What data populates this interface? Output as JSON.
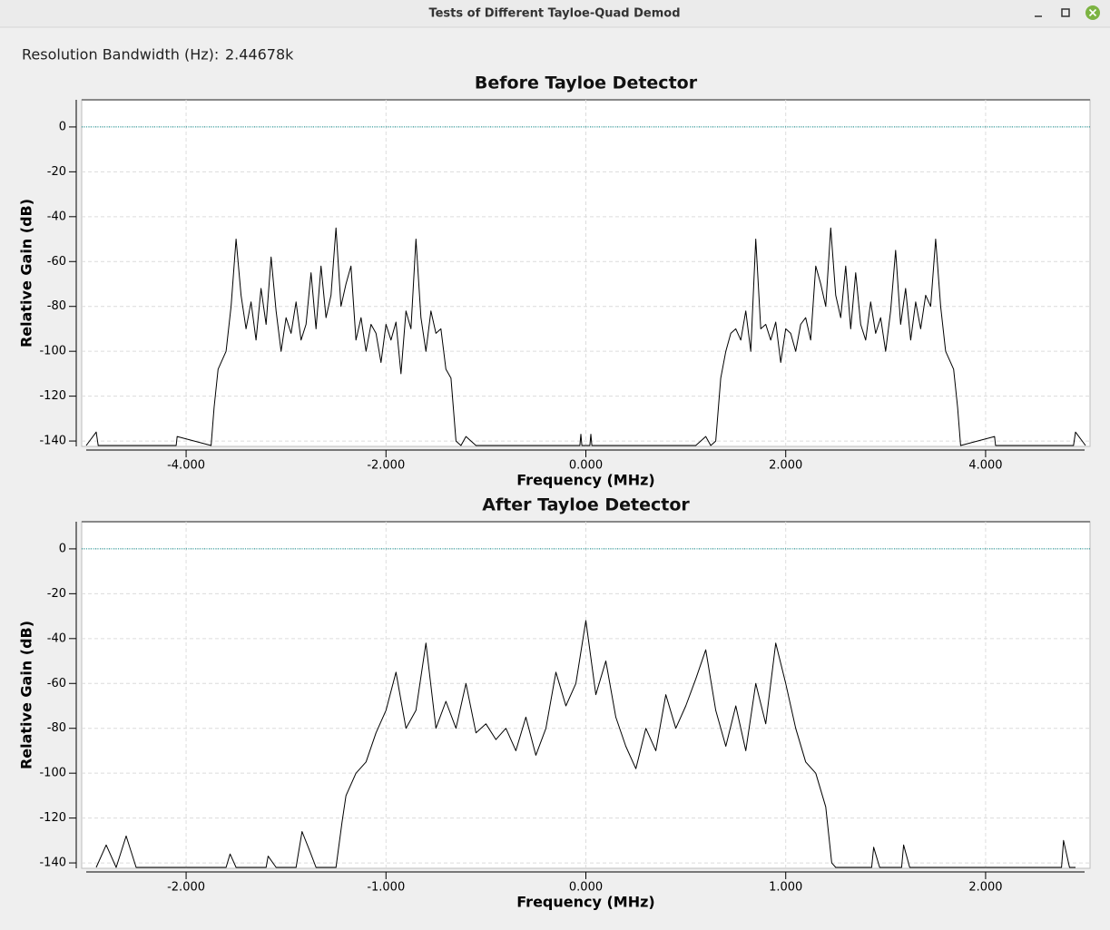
{
  "window": {
    "title": "Tests of Different Tayloe-Quad Demod"
  },
  "controls": {
    "resolution_label": "Resolution Bandwidth (Hz):",
    "resolution_value": "2.44678k"
  },
  "chart_data": [
    {
      "type": "line",
      "title": "Before Tayloe Detector",
      "x_label": "Frequency (MHz)",
      "y_label": "Relative Gain (dB)",
      "xlim": [
        -5.045,
        5.045
      ],
      "ylim": [
        -142.4,
        12.1
      ],
      "xticks": [
        {
          "value": -4,
          "label": "-4.000"
        },
        {
          "value": -2,
          "label": "-2.000"
        },
        {
          "value": 0,
          "label": "0.000"
        },
        {
          "value": 2,
          "label": "2.000"
        },
        {
          "value": 4,
          "label": "4.000"
        }
      ],
      "yticks": [
        0,
        -20,
        -40,
        -60,
        -80,
        -100,
        -120,
        -140
      ],
      "grid": true,
      "reference_line": {
        "value": 0,
        "color": "#008b8b"
      },
      "series": [
        {
          "color": "#000000",
          "x": [
            -5.0,
            -4.9,
            -4.88,
            -4.1,
            -4.09,
            -3.75,
            -3.72,
            -3.68,
            -3.6,
            -3.55,
            -3.5,
            -3.45,
            -3.4,
            -3.35,
            -3.3,
            -3.25,
            -3.2,
            -3.15,
            -3.1,
            -3.05,
            -3.0,
            -2.95,
            -2.9,
            -2.85,
            -2.8,
            -2.75,
            -2.7,
            -2.65,
            -2.6,
            -2.55,
            -2.5,
            -2.45,
            -2.4,
            -2.35,
            -2.3,
            -2.25,
            -2.2,
            -2.15,
            -2.1,
            -2.05,
            -2.0,
            -1.95,
            -1.9,
            -1.85,
            -1.8,
            -1.75,
            -1.7,
            -1.65,
            -1.6,
            -1.55,
            -1.5,
            -1.45,
            -1.4,
            -1.35,
            -1.3,
            -1.25,
            -1.2,
            -1.1,
            -0.06,
            -0.05,
            -0.04,
            0.04,
            0.05,
            0.06,
            1.1,
            1.2,
            1.25,
            1.3,
            1.35,
            1.4,
            1.45,
            1.5,
            1.55,
            1.6,
            1.65,
            1.7,
            1.75,
            1.8,
            1.85,
            1.9,
            1.95,
            2.0,
            2.05,
            2.1,
            2.15,
            2.2,
            2.25,
            2.3,
            2.35,
            2.4,
            2.45,
            2.5,
            2.55,
            2.6,
            2.65,
            2.7,
            2.75,
            2.8,
            2.85,
            2.9,
            2.95,
            3.0,
            3.05,
            3.1,
            3.15,
            3.2,
            3.25,
            3.3,
            3.35,
            3.4,
            3.45,
            3.5,
            3.55,
            3.6,
            3.68,
            3.72,
            3.75,
            4.09,
            4.1,
            4.88,
            4.9,
            5.0
          ],
          "values": [
            -142,
            -136,
            -142,
            -142,
            -138,
            -142,
            -125,
            -108,
            -100,
            -80,
            -50,
            -75,
            -90,
            -78,
            -95,
            -72,
            -88,
            -58,
            -82,
            -100,
            -85,
            -92,
            -78,
            -95,
            -88,
            -65,
            -90,
            -62,
            -85,
            -75,
            -45,
            -80,
            -70,
            -62,
            -95,
            -85,
            -100,
            -88,
            -92,
            -105,
            -88,
            -95,
            -87,
            -110,
            -82,
            -90,
            -50,
            -85,
            -100,
            -82,
            -92,
            -90,
            -108,
            -112,
            -140,
            -142,
            -138,
            -142,
            -142,
            -137,
            -142,
            -142,
            -137,
            -142,
            -142,
            -138,
            -142,
            -140,
            -112,
            -100,
            -92,
            -90,
            -95,
            -82,
            -100,
            -50,
            -90,
            -88,
            -95,
            -87,
            -105,
            -90,
            -92,
            -100,
            -88,
            -85,
            -95,
            -62,
            -70,
            -80,
            -45,
            -75,
            -85,
            -62,
            -90,
            -65,
            -88,
            -95,
            -78,
            -92,
            -85,
            -100,
            -82,
            -55,
            -88,
            -72,
            -95,
            -78,
            -90,
            -75,
            -80,
            -50,
            -80,
            -100,
            -108,
            -125,
            -142,
            -138,
            -142,
            -142,
            -136,
            -142
          ]
        }
      ]
    },
    {
      "type": "line",
      "title": "After Tayloe Detector",
      "x_label": "Frequency (MHz)",
      "y_label": "Relative Gain (dB)",
      "xlim": [
        -2.5225,
        2.5225
      ],
      "ylim": [
        -142.4,
        12.1
      ],
      "xticks": [
        {
          "value": -2,
          "label": "-2.000"
        },
        {
          "value": -1,
          "label": "-1.000"
        },
        {
          "value": 0,
          "label": "0.000"
        },
        {
          "value": 1,
          "label": "1.000"
        },
        {
          "value": 2,
          "label": "2.000"
        }
      ],
      "yticks": [
        0,
        -20,
        -40,
        -60,
        -80,
        -100,
        -120,
        -140
      ],
      "grid": true,
      "reference_line": {
        "value": 0,
        "color": "#008b8b"
      },
      "series": [
        {
          "color": "#000000",
          "x": [
            -2.45,
            -2.4,
            -2.35,
            -2.3,
            -2.25,
            -1.8,
            -1.78,
            -1.75,
            -1.6,
            -1.59,
            -1.55,
            -1.45,
            -1.42,
            -1.38,
            -1.35,
            -1.25,
            -1.22,
            -1.2,
            -1.15,
            -1.1,
            -1.05,
            -1.0,
            -0.95,
            -0.9,
            -0.85,
            -0.8,
            -0.75,
            -0.7,
            -0.65,
            -0.6,
            -0.55,
            -0.5,
            -0.45,
            -0.4,
            -0.35,
            -0.3,
            -0.25,
            -0.2,
            -0.15,
            -0.1,
            -0.05,
            0.0,
            0.05,
            0.1,
            0.15,
            0.2,
            0.25,
            0.3,
            0.35,
            0.4,
            0.45,
            0.5,
            0.55,
            0.6,
            0.65,
            0.7,
            0.75,
            0.8,
            0.85,
            0.9,
            0.95,
            1.0,
            1.05,
            1.1,
            1.15,
            1.2,
            1.23,
            1.25,
            1.43,
            1.44,
            1.47,
            1.58,
            1.59,
            1.62,
            2.38,
            2.39,
            2.42,
            2.45
          ],
          "values": [
            -142,
            -132,
            -142,
            -128,
            -142,
            -142,
            -136,
            -142,
            -142,
            -137,
            -142,
            -142,
            -126,
            -135,
            -142,
            -142,
            -122,
            -110,
            -100,
            -95,
            -82,
            -72,
            -55,
            -80,
            -72,
            -42,
            -80,
            -68,
            -80,
            -60,
            -82,
            -78,
            -85,
            -80,
            -90,
            -75,
            -92,
            -80,
            -55,
            -70,
            -60,
            -32,
            -65,
            -50,
            -75,
            -88,
            -98,
            -80,
            -90,
            -65,
            -80,
            -70,
            -58,
            -45,
            -72,
            -88,
            -70,
            -90,
            -60,
            -78,
            -42,
            -60,
            -80,
            -95,
            -100,
            -115,
            -140,
            -142,
            -142,
            -133,
            -142,
            -142,
            -132,
            -142,
            -142,
            -130,
            -142,
            -142
          ]
        }
      ]
    }
  ]
}
